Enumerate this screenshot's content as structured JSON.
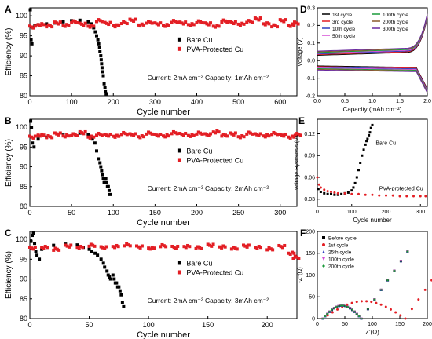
{
  "chart_data": [
    {
      "id": "A",
      "type": "scatter",
      "panel_label": "A",
      "xlabel": "Cycle number",
      "ylabel": "Efficiency (%)",
      "xlim": [
        0,
        640
      ],
      "ylim": [
        80,
        102
      ],
      "xticks": [
        0,
        100,
        200,
        300,
        400,
        500,
        600
      ],
      "yticks": [
        80,
        85,
        90,
        95,
        100
      ],
      "legend": {
        "placement": "right-middle",
        "entries": [
          "Bare Cu",
          "PVA-Protected Cu"
        ]
      },
      "annotation": "Current: 2mA cm⁻²   Capacity: 1mAh cm⁻²",
      "series": [
        {
          "name": "Bare Cu",
          "color": "#000000",
          "marker": "square",
          "x": [
            1,
            3,
            5,
            8,
            12,
            20,
            40,
            60,
            80,
            100,
            120,
            140,
            148,
            153,
            157,
            160,
            163,
            165,
            167,
            168,
            170,
            171,
            172,
            173,
            175,
            176,
            178,
            180,
            181,
            183
          ],
          "y": [
            101.5,
            94,
            93,
            97,
            97.5,
            97.8,
            98,
            98.2,
            98.5,
            98.8,
            98.9,
            98.5,
            98,
            97,
            96,
            95,
            94,
            93,
            92,
            91,
            90,
            89,
            88,
            87,
            86,
            85,
            83,
            82,
            81,
            80.5
          ]
        },
        {
          "name": "PVA-Protected Cu",
          "color": "#e31e24",
          "marker": "square",
          "x": [
            0,
            20,
            40,
            60,
            80,
            100,
            120,
            140,
            160,
            180,
            200,
            220,
            240,
            260,
            280,
            300,
            320,
            340,
            360,
            380,
            400,
            420,
            440,
            460,
            480,
            500,
            520,
            540,
            560,
            580,
            600,
            620,
            630
          ],
          "y": [
            97.2,
            97.8,
            97.5,
            98.2,
            97.6,
            98.5,
            97.9,
            97.4,
            98.8,
            98.1,
            97.5,
            98.3,
            98.9,
            97.7,
            98.4,
            98.0,
            97.6,
            98.6,
            98.2,
            97.8,
            98.5,
            98.0,
            97.4,
            98.7,
            98.3,
            97.9,
            98.6,
            99.2,
            98.0,
            97.5,
            98.8,
            97.6,
            98.2
          ]
        }
      ]
    },
    {
      "id": "B",
      "type": "scatter",
      "panel_label": "B",
      "xlabel": "Cycle number",
      "ylabel": "Efficiency (%)",
      "xlim": [
        0,
        320
      ],
      "ylim": [
        80,
        102
      ],
      "xticks": [
        0,
        50,
        100,
        150,
        200,
        250,
        300
      ],
      "yticks": [
        80,
        85,
        90,
        95,
        100
      ],
      "legend": {
        "placement": "right-middle",
        "entries": [
          "Bare Cu",
          "PVA-Protected Cu"
        ]
      },
      "annotation": "Current: 2mA cm⁻²   Capacity: 2mAh cm⁻²",
      "series": [
        {
          "name": "Bare Cu",
          "color": "#000000",
          "marker": "square",
          "x": [
            1,
            2,
            3,
            5,
            10,
            20,
            40,
            60,
            70,
            75,
            78,
            80,
            82,
            84,
            85,
            86,
            87,
            88,
            89,
            90,
            91,
            92,
            93,
            94,
            95,
            96
          ],
          "y": [
            101.5,
            100,
            96,
            95,
            97,
            97.5,
            98,
            98.5,
            98.2,
            97,
            96,
            94,
            92,
            91,
            90,
            89,
            88,
            87,
            86,
            86,
            87,
            86,
            85,
            85,
            84,
            83
          ]
        },
        {
          "name": "PVA-Protected Cu",
          "color": "#e31e24",
          "marker": "square",
          "x": [
            0,
            10,
            20,
            30,
            40,
            50,
            60,
            70,
            80,
            90,
            100,
            110,
            120,
            130,
            140,
            150,
            160,
            170,
            180,
            190,
            200,
            210,
            220,
            230,
            240,
            250,
            260,
            270,
            280,
            290,
            300,
            310,
            318
          ],
          "y": [
            97.5,
            98.0,
            97.6,
            98.3,
            97.8,
            98.1,
            98.6,
            97.5,
            98.2,
            98.0,
            97.7,
            98.4,
            98.1,
            97.6,
            98.5,
            98.0,
            97.8,
            98.6,
            98.2,
            97.9,
            98.5,
            98.1,
            98.8,
            98.0,
            98.3,
            97.6,
            98.5,
            98.1,
            97.8,
            98.4,
            98.0,
            97.5,
            98.2
          ]
        }
      ]
    },
    {
      "id": "C",
      "type": "scatter",
      "panel_label": "C",
      "xlabel": "Cycle number",
      "ylabel": "Efficiency (%)",
      "xlim": [
        0,
        225
      ],
      "ylim": [
        80,
        102
      ],
      "xticks": [
        0,
        50,
        100,
        150,
        200
      ],
      "yticks": [
        80,
        85,
        90,
        95,
        100
      ],
      "legend": {
        "placement": "right-middle",
        "entries": [
          "Bare Cu",
          "PVA-Protected Cu"
        ]
      },
      "annotation": "Current: 2mA cm⁻²   Capacity: 3mAh cm⁻²",
      "series": [
        {
          "name": "Bare Cu",
          "color": "#000000",
          "marker": "square",
          "x": [
            1,
            2,
            3,
            4,
            5,
            6,
            8,
            10,
            15,
            20,
            30,
            40,
            45,
            50,
            52,
            55,
            57,
            60,
            62,
            63,
            65,
            66,
            67,
            68,
            70,
            71,
            72,
            73,
            74,
            75,
            76,
            77,
            78,
            79
          ],
          "y": [
            99.5,
            101,
            101.5,
            99,
            97,
            96,
            95,
            97.5,
            98,
            98.5,
            98.8,
            98.6,
            98,
            97.5,
            97,
            96.5,
            96,
            95,
            94,
            93,
            92,
            91,
            90.5,
            90,
            91,
            90,
            89,
            89,
            88,
            88,
            87,
            86,
            84,
            83
          ]
        },
        {
          "name": "PVA-Protected Cu",
          "color": "#e31e24",
          "marker": "square",
          "x": [
            0,
            10,
            20,
            30,
            40,
            50,
            60,
            70,
            80,
            90,
            100,
            110,
            120,
            130,
            140,
            150,
            160,
            170,
            180,
            190,
            200,
            210,
            218,
            222
          ],
          "y": [
            97.8,
            98.0,
            97.5,
            98.3,
            98.0,
            98.5,
            97.9,
            98.2,
            98.6,
            98.1,
            97.8,
            98.4,
            98.0,
            98.2,
            97.9,
            98.5,
            98.1,
            97.8,
            98.3,
            98.0,
            97.6,
            98.2,
            96.5,
            95.5
          ]
        }
      ]
    },
    {
      "id": "D",
      "type": "line",
      "panel_label": "D",
      "xlabel": "Capacity (mAh cm⁻²)",
      "ylabel": "Voltage (V)",
      "xlim": [
        0,
        2.0
      ],
      "ylim": [
        -0.2,
        0.3
      ],
      "xticks": [
        0.0,
        0.5,
        1.0,
        1.5,
        2.0
      ],
      "xtick_labels": [
        "0.0",
        "0.5",
        "1.0",
        "1.5",
        "2.0"
      ],
      "yticks": [
        -0.2,
        -0.1,
        0.0,
        0.1,
        0.2,
        0.3
      ],
      "ytick_labels": [
        "-0.2",
        "-0.1",
        "0.0",
        "0.1",
        "0.2",
        "0.3"
      ],
      "legend": {
        "placement": "top-left",
        "columns": 2
      },
      "series": [
        {
          "name": "1st cycle",
          "color": "#000000"
        },
        {
          "name": "3rd cycle",
          "color": "#e31e24"
        },
        {
          "name": "10th cycle",
          "color": "#2f3fbf"
        },
        {
          "name": "50th cycle",
          "color": "#d64fd6"
        },
        {
          "name": "100th cycle",
          "color": "#1a9a3a"
        },
        {
          "name": "200th cycle",
          "color": "#8a5a2a"
        },
        {
          "name": "300th cycle",
          "color": "#6a2aa0"
        }
      ]
    },
    {
      "id": "E",
      "type": "scatter",
      "panel_label": "E",
      "xlabel": "Cycle number",
      "ylabel": "Voltage Hysteresis (V)",
      "xlim": [
        0,
        320
      ],
      "ylim": [
        0.02,
        0.14
      ],
      "xticks": [
        0,
        100,
        200,
        300
      ],
      "yticks": [
        0.03,
        0.06,
        0.09,
        0.12
      ],
      "ytick_labels": [
        "0.03",
        "0.06",
        "0.09",
        "0.12"
      ],
      "series": [
        {
          "name": "Bare Cu",
          "color": "#000000",
          "marker": "square",
          "x": [
            3,
            10,
            20,
            30,
            40,
            50,
            60,
            70,
            80,
            90,
            100,
            105,
            110,
            115,
            120,
            125,
            130,
            135,
            140,
            143,
            146,
            150,
            153,
            156,
            160
          ],
          "y": [
            0.044,
            0.04,
            0.038,
            0.037,
            0.037,
            0.036,
            0.036,
            0.037,
            0.038,
            0.039,
            0.042,
            0.046,
            0.052,
            0.06,
            0.07,
            0.08,
            0.09,
            0.098,
            0.105,
            0.11,
            0.113,
            0.118,
            0.122,
            0.128,
            0.132
          ]
        },
        {
          "name": "PVA-protected Cu",
          "color": "#e31e24",
          "marker": "circle",
          "x": [
            0,
            5,
            10,
            20,
            30,
            40,
            50,
            60,
            80,
            100,
            120,
            140,
            160,
            180,
            200,
            220,
            240,
            260,
            280,
            300,
            315
          ],
          "y": [
            0.06,
            0.05,
            0.046,
            0.043,
            0.041,
            0.04,
            0.039,
            0.038,
            0.038,
            0.037,
            0.037,
            0.036,
            0.036,
            0.035,
            0.035,
            0.035,
            0.034,
            0.034,
            0.034,
            0.034,
            0.034
          ]
        }
      ]
    },
    {
      "id": "F",
      "type": "scatter",
      "panel_label": "F",
      "xlabel": "Z'(Ω)",
      "ylabel": "-Z''(Ω)",
      "xlim": [
        0,
        200
      ],
      "ylim": [
        0,
        200
      ],
      "xticks": [
        0,
        50,
        100,
        150,
        200
      ],
      "yticks": [
        0,
        50,
        100,
        150,
        200
      ],
      "legend": {
        "placement": "top-left"
      },
      "series": [
        {
          "name": "Before cycle",
          "color": "#000000",
          "marker": "square"
        },
        {
          "name": "1st cycle",
          "color": "#e31e24",
          "marker": "circle"
        },
        {
          "name": "25th cycle",
          "color": "#2f3fbf",
          "marker": "triangle"
        },
        {
          "name": "100th cycle",
          "color": "#d64fd6",
          "marker": "triangle-down"
        },
        {
          "name": "200th cycle",
          "color": "#1a9a3a",
          "marker": "diamond"
        }
      ]
    }
  ]
}
